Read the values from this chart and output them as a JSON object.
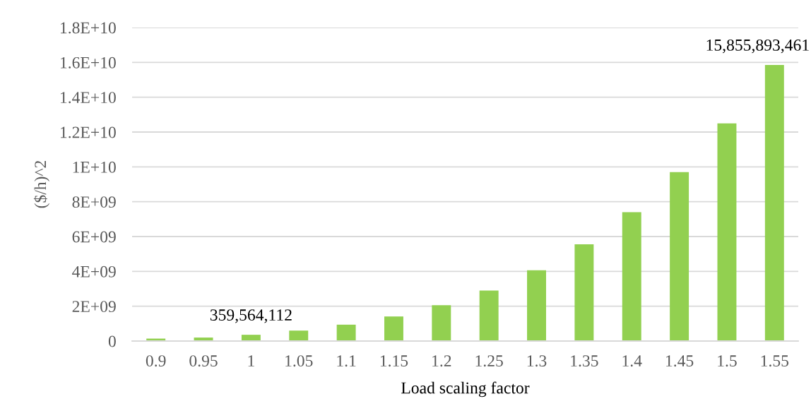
{
  "chart_data": {
    "type": "bar",
    "xlabel": "Load scaling factor",
    "ylabel": "($/h)^2",
    "categories": [
      "0.9",
      "0.95",
      "1",
      "1.05",
      "1.1",
      "1.15",
      "1.2",
      "1.25",
      "1.3",
      "1.35",
      "1.4",
      "1.45",
      "1.5",
      "1.55"
    ],
    "values": [
      140000000,
      200000000,
      359564112,
      600000000,
      940000000,
      1410000000,
      2060000000,
      2900000000,
      4060000000,
      5550000000,
      7400000000,
      9700000000,
      12500000000,
      15855893461
    ],
    "value_labels": [
      null,
      null,
      "359,564,112",
      null,
      null,
      null,
      null,
      null,
      null,
      null,
      null,
      null,
      null,
      "15,855,893,461"
    ],
    "color": "#92d050",
    "ylim": [
      0,
      18000000000
    ],
    "yticks": [
      0,
      {
        "value": 2000000000,
        "label": "2E+09"
      },
      {
        "value": 4000000000,
        "label": "4E+09"
      },
      {
        "value": 6000000000,
        "label": "6E+09"
      },
      {
        "value": 8000000000,
        "label": "8E+09"
      },
      {
        "value": 10000000000,
        "label": "1E+10"
      },
      {
        "value": 12000000000,
        "label": "1.2E+10"
      },
      {
        "value": 14000000000,
        "label": "1.4E+10"
      },
      {
        "value": 16000000000,
        "label": "1.6E+10"
      },
      {
        "value": 18000000000,
        "label": "1.8E+10"
      }
    ],
    "grid": "y"
  }
}
